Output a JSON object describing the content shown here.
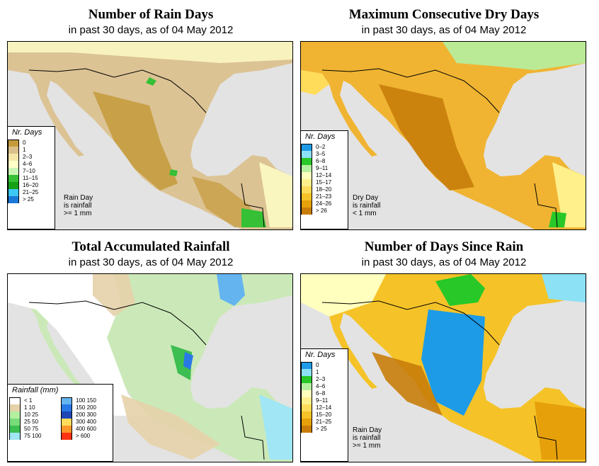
{
  "panels": [
    {
      "title": "Number of Rain Days",
      "subtitle": "in past 30 days, as of  04 May 2012",
      "legend": {
        "title": "Nr. Days",
        "items": [
          {
            "label": "0",
            "color": "#c49a3b"
          },
          {
            "label": "1",
            "color": "#dbbf8a"
          },
          {
            "label": "2–3",
            "color": "#f5e6a7"
          },
          {
            "label": "4–6",
            "color": "#ffffc8"
          },
          {
            "label": "7–10",
            "color": "#c8f5b4"
          },
          {
            "label": "11–15",
            "color": "#35c035"
          },
          {
            "label": "16–20",
            "color": "#16a016"
          },
          {
            "label": "21–25",
            "color": "#3cc8f5"
          },
          {
            "label": "> 25",
            "color": "#1a78d8"
          }
        ]
      },
      "note": [
        "Rain Day",
        "is rainfall",
        ">= 1 mm"
      ]
    },
    {
      "title": "Maximum Consecutive Dry Days",
      "subtitle": "in past 30 days, as of  04 May 2012",
      "legend": {
        "title": "Nr. Days",
        "items": [
          {
            "label": "0–2",
            "color": "#1e9be6"
          },
          {
            "label": "3–5",
            "color": "#8ce1f5"
          },
          {
            "label": "6–8",
            "color": "#28c828"
          },
          {
            "label": "9–11",
            "color": "#b4f0a0"
          },
          {
            "label": "12–14",
            "color": "#ffffbe"
          },
          {
            "label": "15–17",
            "color": "#fff08c"
          },
          {
            "label": "18–20",
            "color": "#ffdc5a"
          },
          {
            "label": "21–23",
            "color": "#f5c328"
          },
          {
            "label": "24–26",
            "color": "#e6a00a"
          },
          {
            "label": "> 26",
            "color": "#c87d0a"
          }
        ]
      },
      "note": [
        "Dry Day",
        "is rainfall",
        "< 1 mm"
      ]
    },
    {
      "title": "Total Accumulated Rainfall",
      "subtitle": "in past 30 days, as of  04 May 2012",
      "legend": {
        "title": "Rainfall (mm)",
        "columns": [
          [
            {
              "label": "< 1",
              "color": "#ffffff"
            },
            {
              "label": "1    10",
              "color": "#e6d2aa"
            },
            {
              "label": "10    25",
              "color": "#b4f0a0"
            },
            {
              "label": "25    50",
              "color": "#78dc78"
            },
            {
              "label": "50    75",
              "color": "#3cbe50"
            },
            {
              "label": "75    100",
              "color": "#a0e6f5"
            }
          ],
          [
            {
              "label": "100    150",
              "color": "#64b4f0"
            },
            {
              "label": "150    200",
              "color": "#2878e6"
            },
            {
              "label": "200    300",
              "color": "#1e46b4"
            },
            {
              "label": "300    400",
              "color": "#ffdc5a"
            },
            {
              "label": "400    600",
              "color": "#ff9628"
            },
            {
              "label": "> 600",
              "color": "#ff3214"
            }
          ]
        ]
      }
    },
    {
      "title": "Number of Days Since Rain",
      "subtitle": "in past 30 days, as of  04 May 2012",
      "legend": {
        "title": "Nr. Days",
        "items": [
          {
            "label": "0",
            "color": "#1e9be6"
          },
          {
            "label": "1",
            "color": "#8ce1f5"
          },
          {
            "label": "2–3",
            "color": "#28c828"
          },
          {
            "label": "4–6",
            "color": "#b4f0a0"
          },
          {
            "label": "6–8",
            "color": "#ffffbe"
          },
          {
            "label": "9–11",
            "color": "#fff08c"
          },
          {
            "label": "12–14",
            "color": "#ffdc5a"
          },
          {
            "label": "15–20",
            "color": "#f5c328"
          },
          {
            "label": "21–25",
            "color": "#e6a00a"
          },
          {
            "label": "> 25",
            "color": "#c87d0a"
          }
        ]
      },
      "note": [
        "Rain Day",
        "is rainfall",
        ">= 1 mm"
      ]
    }
  ],
  "colors": {
    "ocean": "#e3e3e3",
    "land_p1": "#dcc394",
    "land_p2": "#f0b432",
    "land_p3": "#cbe9b8",
    "land_p4": "#f5c328"
  }
}
